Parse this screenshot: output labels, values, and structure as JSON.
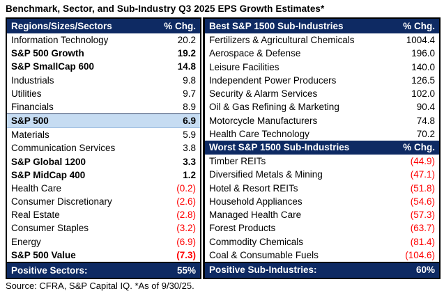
{
  "title": "Benchmark, Sector, and Sub-Industry Q3 2025 EPS Growth Estimates*",
  "source_note": "Source: CFRA, S&P Capital IQ. *As of 9/30/25.",
  "colors": {
    "header_bg": "#0E2A63",
    "highlight_bg": "#C6DCF2",
    "negative": "#FF0000"
  },
  "left_table": {
    "header": {
      "label": "Regions/Sizes/Sectors",
      "value": "% Chg."
    },
    "rows": [
      {
        "label": "Information Technology",
        "value": "20.2",
        "bold": false,
        "negative": false,
        "highlight": false
      },
      {
        "label": "S&P 500 Growth",
        "value": "19.2",
        "bold": true,
        "negative": false,
        "highlight": false
      },
      {
        "label": "S&P SmallCap 600",
        "value": "14.8",
        "bold": true,
        "negative": false,
        "highlight": false
      },
      {
        "label": "Industrials",
        "value": "9.8",
        "bold": false,
        "negative": false,
        "highlight": false
      },
      {
        "label": "Utilities",
        "value": "9.7",
        "bold": false,
        "negative": false,
        "highlight": false
      },
      {
        "label": "Financials",
        "value": "8.9",
        "bold": false,
        "negative": false,
        "highlight": false
      },
      {
        "label": "S&P 500",
        "value": "6.9",
        "bold": true,
        "negative": false,
        "highlight": true
      },
      {
        "label": "Materials",
        "value": "5.9",
        "bold": false,
        "negative": false,
        "highlight": false
      },
      {
        "label": "Communication Services",
        "value": "3.8",
        "bold": false,
        "negative": false,
        "highlight": false
      },
      {
        "label": "S&P Global 1200",
        "value": "3.3",
        "bold": true,
        "negative": false,
        "highlight": false
      },
      {
        "label": "S&P MidCap 400",
        "value": "1.2",
        "bold": true,
        "negative": false,
        "highlight": false
      },
      {
        "label": "Health Care",
        "value": "(0.2)",
        "bold": false,
        "negative": true,
        "highlight": false
      },
      {
        "label": "Consumer Discretionary",
        "value": "(2.6)",
        "bold": false,
        "negative": true,
        "highlight": false
      },
      {
        "label": "Real Estate",
        "value": "(2.8)",
        "bold": false,
        "negative": true,
        "highlight": false
      },
      {
        "label": "Consumer Staples",
        "value": "(3.2)",
        "bold": false,
        "negative": true,
        "highlight": false
      },
      {
        "label": "Energy",
        "value": "(6.9)",
        "bold": false,
        "negative": true,
        "highlight": false
      },
      {
        "label": "S&P 500 Value",
        "value": "(7.3)",
        "bold": true,
        "negative": true,
        "highlight": false
      }
    ],
    "footer": {
      "label": "Positive Sectors:",
      "value": "55%"
    }
  },
  "best_table": {
    "header": {
      "label": "Best S&P 1500 Sub-Industries",
      "value": "% Chg."
    },
    "rows": [
      {
        "label": "Fertilizers & Agricultural Chemicals",
        "value": "1004.4",
        "bold": false,
        "negative": false,
        "highlight": false
      },
      {
        "label": "Aerospace & Defense",
        "value": "196.0",
        "bold": false,
        "negative": false,
        "highlight": false
      },
      {
        "label": "Leisure Facilities",
        "value": "140.0",
        "bold": false,
        "negative": false,
        "highlight": false
      },
      {
        "label": "Independent Power Producers",
        "value": "126.5",
        "bold": false,
        "negative": false,
        "highlight": false
      },
      {
        "label": "Security & Alarm Services",
        "value": "102.0",
        "bold": false,
        "negative": false,
        "highlight": false
      },
      {
        "label": "Oil & Gas Refining & Marketing",
        "value": "90.4",
        "bold": false,
        "negative": false,
        "highlight": false
      },
      {
        "label": "Motorcycle Manufacturers",
        "value": "74.8",
        "bold": false,
        "negative": false,
        "highlight": false
      },
      {
        "label": "Health Care Technology",
        "value": "70.2",
        "bold": false,
        "negative": false,
        "highlight": false
      }
    ]
  },
  "worst_table": {
    "header": {
      "label": "Worst S&P 1500 Sub-Industries",
      "value": "% Chg."
    },
    "rows": [
      {
        "label": "Timber REITs",
        "value": "(44.9)",
        "bold": false,
        "negative": true,
        "highlight": false
      },
      {
        "label": "Diversified Metals & Mining",
        "value": "(47.1)",
        "bold": false,
        "negative": true,
        "highlight": false
      },
      {
        "label": "Hotel & Resort REITs",
        "value": "(51.8)",
        "bold": false,
        "negative": true,
        "highlight": false
      },
      {
        "label": "Household Appliances",
        "value": "(54.6)",
        "bold": false,
        "negative": true,
        "highlight": false
      },
      {
        "label": "Managed Health Care",
        "value": "(57.3)",
        "bold": false,
        "negative": true,
        "highlight": false
      },
      {
        "label": "Forest Products",
        "value": "(63.7)",
        "bold": false,
        "negative": true,
        "highlight": false
      },
      {
        "label": "Commodity Chemicals",
        "value": "(81.4)",
        "bold": false,
        "negative": true,
        "highlight": false
      },
      {
        "label": "Coal & Consumable Fuels",
        "value": "(104.6)",
        "bold": false,
        "negative": true,
        "highlight": false
      }
    ],
    "footer": {
      "label": "Positive Sub-Industries:",
      "value": "60%"
    }
  },
  "chart_data": {
    "type": "table",
    "title": "Benchmark, Sector, and Sub-Industry Q3 2025 EPS Growth Estimates*",
    "unit": "% Chg.",
    "tables": [
      {
        "name": "Regions/Sizes/Sectors",
        "rows": [
          [
            "Information Technology",
            20.2
          ],
          [
            "S&P 500 Growth",
            19.2
          ],
          [
            "S&P SmallCap 600",
            14.8
          ],
          [
            "Industrials",
            9.8
          ],
          [
            "Utilities",
            9.7
          ],
          [
            "Financials",
            8.9
          ],
          [
            "S&P 500",
            6.9
          ],
          [
            "Materials",
            5.9
          ],
          [
            "Communication Services",
            3.8
          ],
          [
            "S&P Global 1200",
            3.3
          ],
          [
            "S&P MidCap 400",
            1.2
          ],
          [
            "Health Care",
            -0.2
          ],
          [
            "Consumer Discretionary",
            -2.6
          ],
          [
            "Real Estate",
            -2.8
          ],
          [
            "Consumer Staples",
            -3.2
          ],
          [
            "Energy",
            -6.9
          ],
          [
            "S&P 500 Value",
            -7.3
          ]
        ],
        "summary": {
          "label": "Positive Sectors:",
          "value": "55%"
        }
      },
      {
        "name": "Best S&P 1500 Sub-Industries",
        "rows": [
          [
            "Fertilizers & Agricultural Chemicals",
            1004.4
          ],
          [
            "Aerospace & Defense",
            196.0
          ],
          [
            "Leisure Facilities",
            140.0
          ],
          [
            "Independent Power Producers",
            126.5
          ],
          [
            "Security & Alarm Services",
            102.0
          ],
          [
            "Oil & Gas Refining & Marketing",
            90.4
          ],
          [
            "Motorcycle Manufacturers",
            74.8
          ],
          [
            "Health Care Technology",
            70.2
          ]
        ]
      },
      {
        "name": "Worst S&P 1500 Sub-Industries",
        "rows": [
          [
            "Timber REITs",
            -44.9
          ],
          [
            "Diversified Metals & Mining",
            -47.1
          ],
          [
            "Hotel & Resort REITs",
            -51.8
          ],
          [
            "Household Appliances",
            -54.6
          ],
          [
            "Managed Health Care",
            -57.3
          ],
          [
            "Forest Products",
            -63.7
          ],
          [
            "Commodity Chemicals",
            -81.4
          ],
          [
            "Coal & Consumable Fuels",
            -104.6
          ]
        ],
        "summary": {
          "label": "Positive Sub-Industries:",
          "value": "60%"
        }
      }
    ],
    "as_of": "9/30/25"
  }
}
